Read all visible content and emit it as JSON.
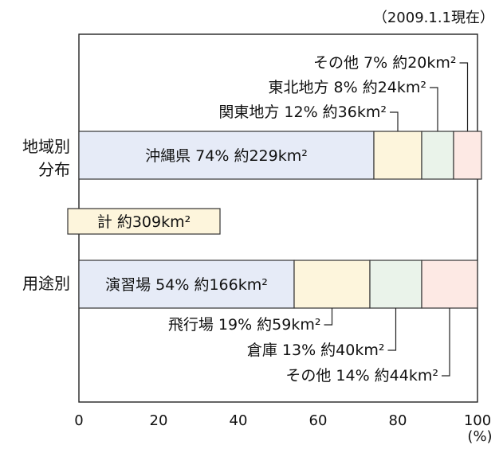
{
  "chart_data": {
    "type": "bar",
    "orientation": "horizontal",
    "stacked": true,
    "note": "（2009.1.1現在）",
    "total_label": "計 約309km²",
    "xlim": [
      0,
      100
    ],
    "xticks": [
      "0",
      "20",
      "40",
      "60",
      "80",
      "100"
    ],
    "xunit": "(%)",
    "grid": false,
    "categories": [
      "地域別\n分布",
      "用途別"
    ],
    "rows": [
      {
        "label_lines": [
          "地域別",
          "分布"
        ],
        "segments": [
          {
            "name": "沖縄県",
            "value": 74,
            "area": "約229km²",
            "label": "沖縄県 74% 約229km²",
            "color": "#e6ebf7"
          },
          {
            "name": "関東地方",
            "value": 12,
            "area": "約36km²",
            "label": "関東地方 12% 約36km²",
            "color": "#fdf5dc"
          },
          {
            "name": "東北地方",
            "value": 8,
            "area": "約24km²",
            "label": "東北地方 8% 約24km²",
            "color": "#eaf3ea"
          },
          {
            "name": "その他",
            "value": 7,
            "area": "約20km²",
            "label": "その他 7% 約20km²",
            "color": "#fde9e4"
          }
        ]
      },
      {
        "label_lines": [
          "用途別"
        ],
        "segments": [
          {
            "name": "演習場",
            "value": 54,
            "area": "約166km²",
            "label": "演習場 54% 約166km²",
            "color": "#e6ebf7"
          },
          {
            "name": "飛行場",
            "value": 19,
            "area": "約59km²",
            "label": "飛行場 19% 約59km²",
            "color": "#fdf5dc"
          },
          {
            "name": "倉庫",
            "value": 13,
            "area": "約40km²",
            "label": "倉庫 13% 約40km²",
            "color": "#eaf3ea"
          },
          {
            "name": "その他",
            "value": 14,
            "area": "約44km²",
            "label": "その他 14% 約44km²",
            "color": "#fde9e4"
          }
        ]
      }
    ],
    "total_box_color": "#fdf5dc"
  }
}
